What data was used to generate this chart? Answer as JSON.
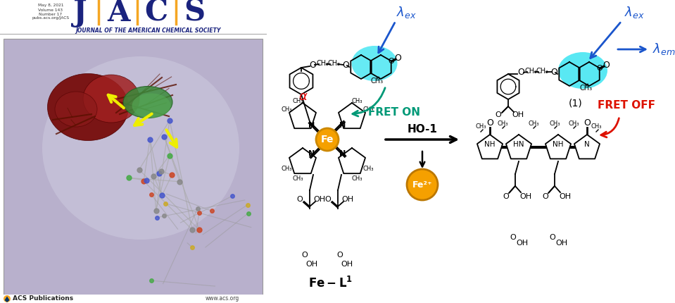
{
  "background_color": "#ffffff",
  "jacs_letters": [
    "J",
    "A",
    "C",
    "S"
  ],
  "jacs_color": "#1a237e",
  "jacs_separator_color": "#f5a623",
  "journal_subtitle": "JOURNAL OF THE AMERICAN CHEMICAL SOCIETY",
  "left_panel_bg": "#b8b0cc",
  "acs_logo_color": "#f5a623",
  "fret_on_color": "#009977",
  "fret_off_color": "#dd1100",
  "fe_circle_color": "#f5a000",
  "fe2plus_color": "#f5a000",
  "lambda_color": "#1a55cc",
  "coumarin_glow": "#00ddee",
  "alpha_color": "#dd0000",
  "ho1_label": "HO-1",
  "fe_label": "Fe",
  "fe2plus_label": "Fe²⁺",
  "fret_on_label": "FRET ON",
  "fret_off_label": "FRET OFF",
  "fel1_label": "Fe–L¹"
}
